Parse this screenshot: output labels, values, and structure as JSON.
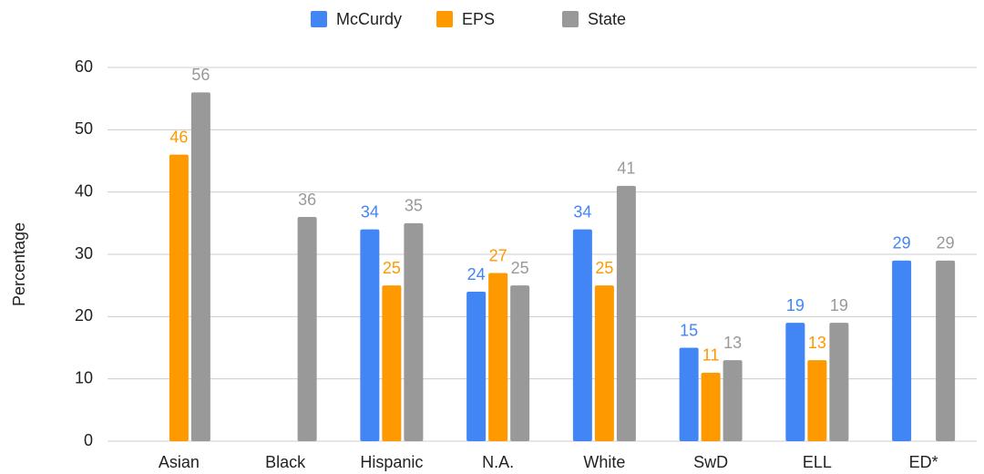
{
  "chart_data": {
    "type": "bar",
    "categories": [
      "Asian",
      "Black",
      "Hispanic",
      "N.A.",
      "White",
      "SwD",
      "ELL",
      "ED*"
    ],
    "series": [
      {
        "name": "McCurdy",
        "color": "#4285f4",
        "values": [
          null,
          null,
          34,
          24,
          34,
          15,
          19,
          29
        ]
      },
      {
        "name": "EPS",
        "color": "#ff9900",
        "values": [
          46,
          null,
          25,
          27,
          25,
          11,
          13,
          null
        ]
      },
      {
        "name": "State",
        "color": "#999999",
        "values": [
          56,
          36,
          35,
          25,
          41,
          13,
          19,
          29
        ]
      }
    ],
    "y_label": "Percentage",
    "ylim": [
      0,
      60
    ],
    "yticks": [
      0,
      10,
      20,
      30,
      40,
      50,
      60
    ],
    "grid": true,
    "legend": "top"
  }
}
